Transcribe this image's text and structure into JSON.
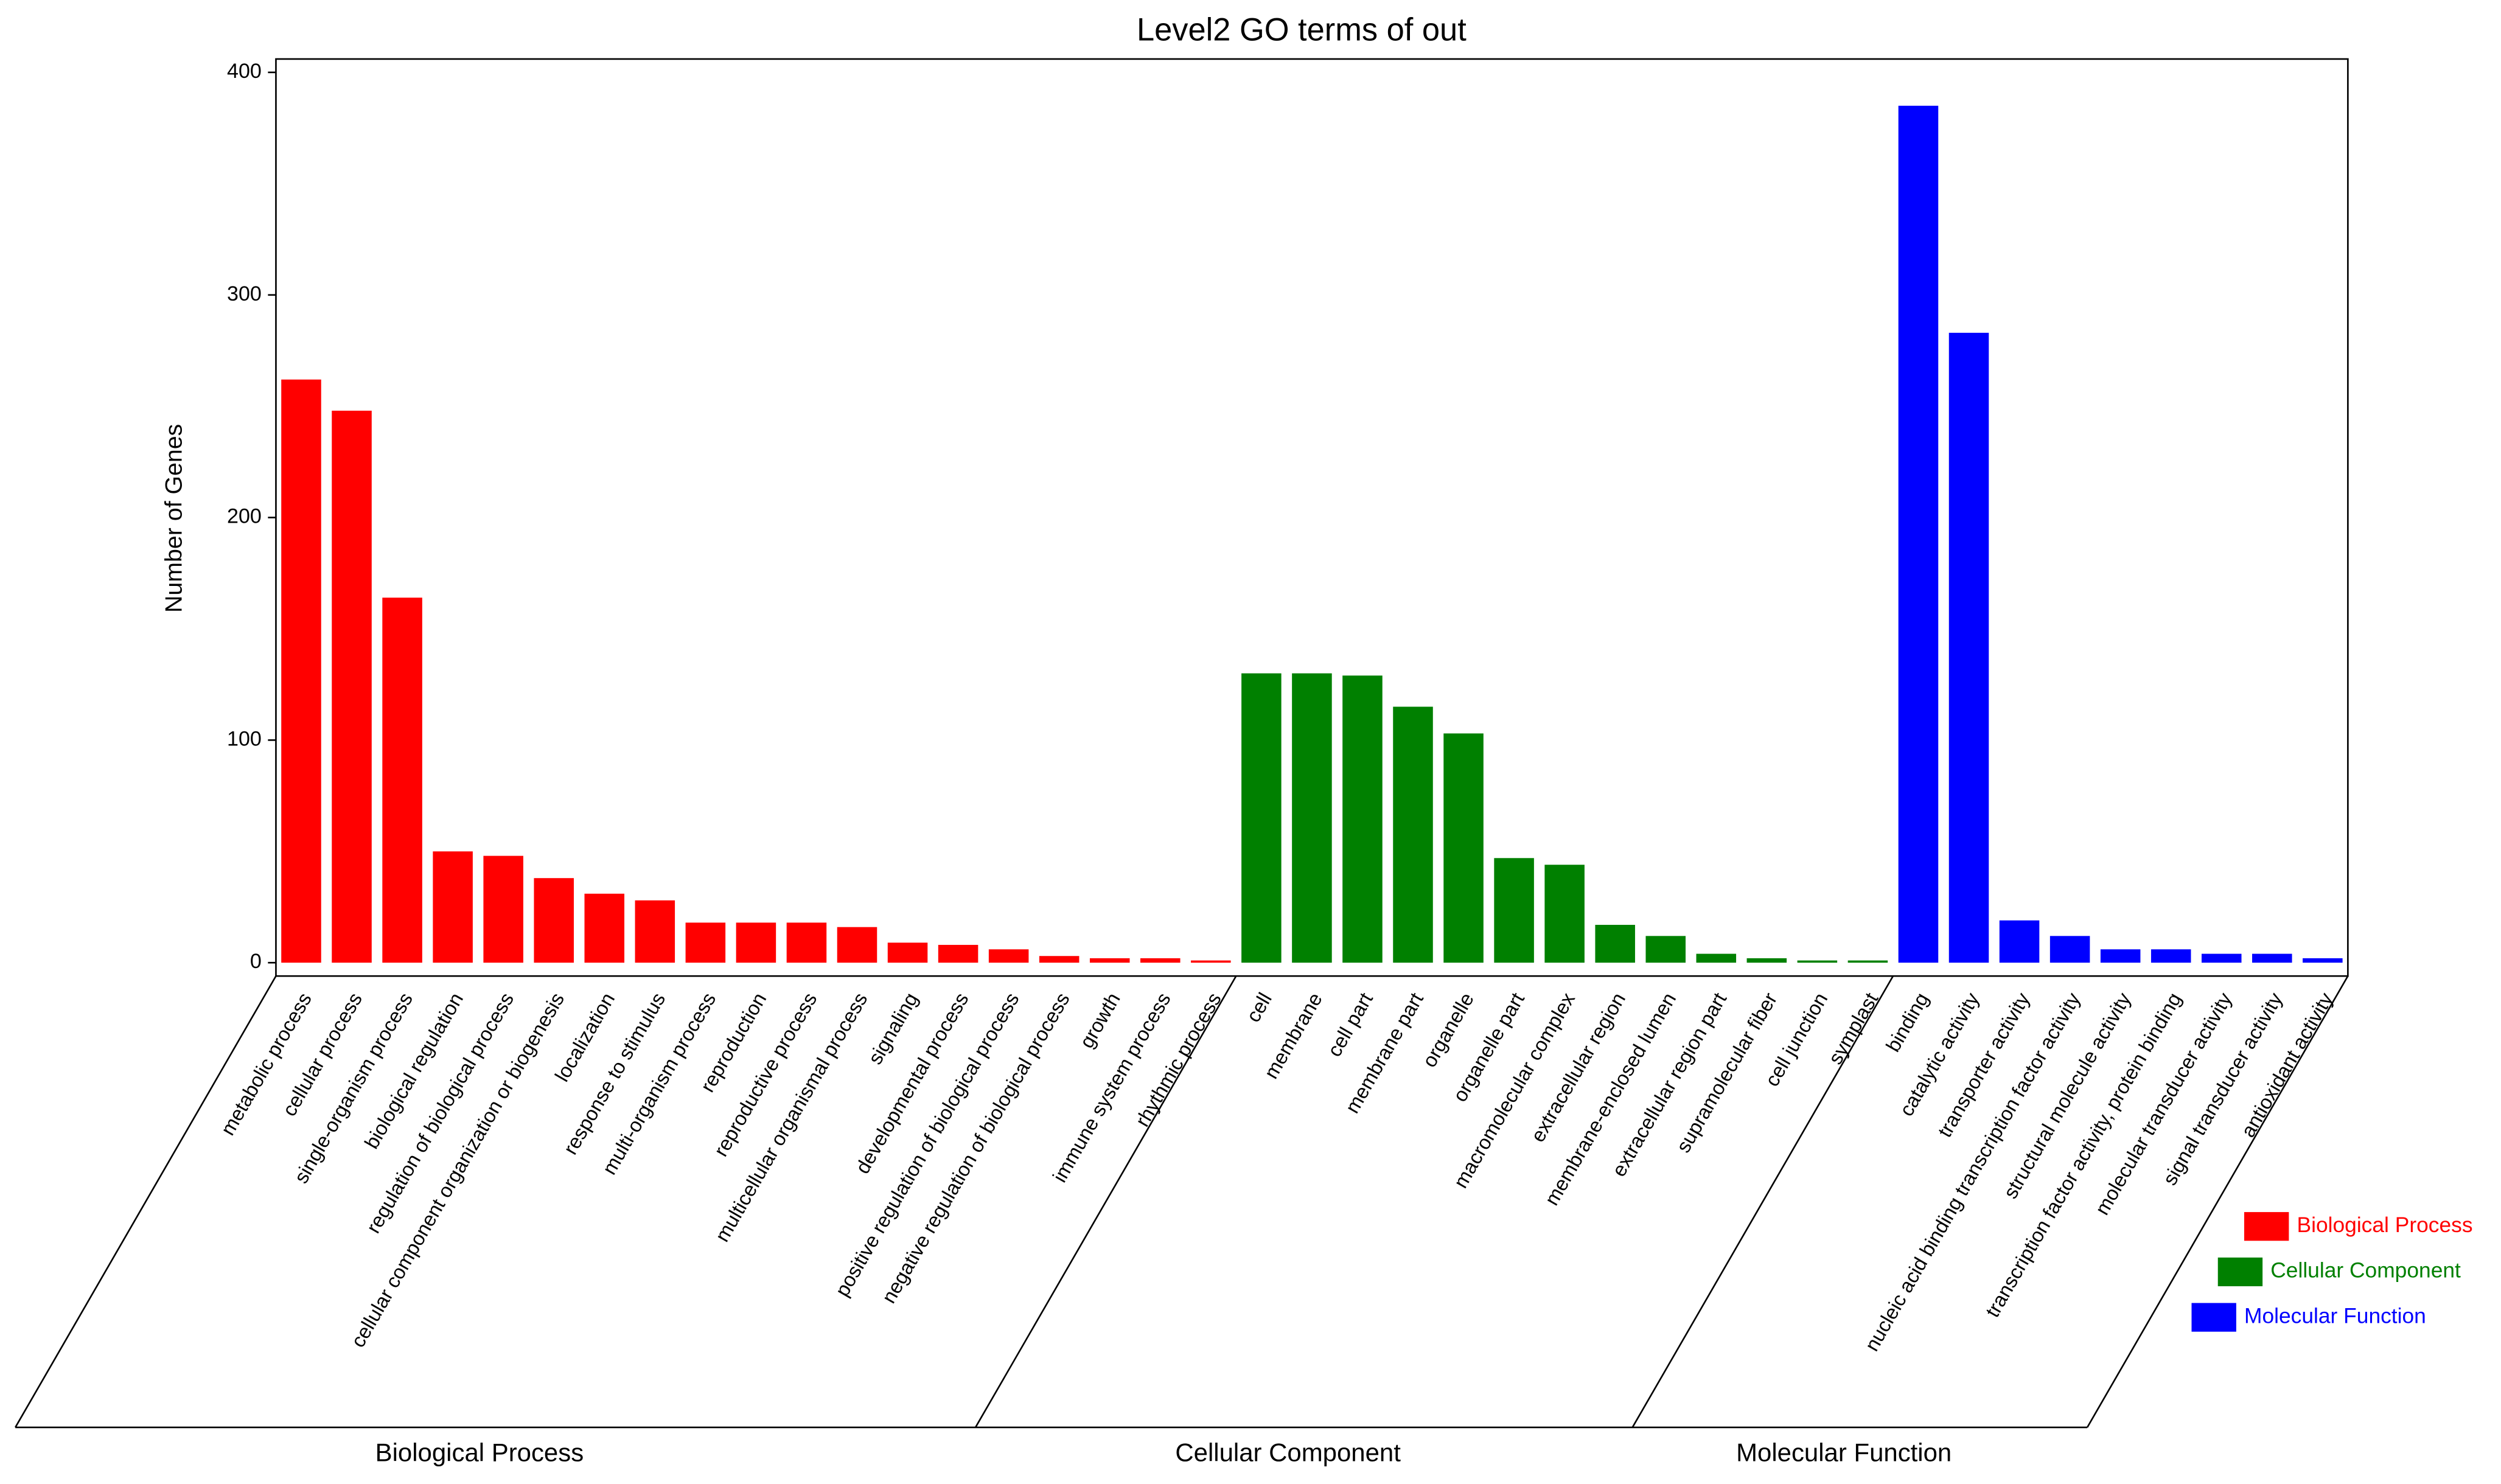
{
  "chart_data": {
    "type": "bar",
    "title": "Level2 GO terms of out",
    "ylabel": "Number of Genes",
    "categories": [
      "metabolic process",
      "cellular process",
      "single-organism process",
      "biological regulation",
      "regulation of biological process",
      "cellular component organization or biogenesis",
      "localization",
      "response to stimulus",
      "multi-organism process",
      "reproduction",
      "reproductive process",
      "multicellular organismal process",
      "signaling",
      "developmental process",
      "positive regulation of biological process",
      "negative regulation of biological process",
      "growth",
      "immune system process",
      "rhythmic process",
      "cell",
      "membrane",
      "cell part",
      "membrane part",
      "organelle",
      "organelle part",
      "macromolecular complex",
      "extracellular region",
      "membrane-enclosed lumen",
      "extracellular region part",
      "supramolecular fiber",
      "cell junction",
      "symplast",
      "binding",
      "catalytic activity",
      "transporter activity",
      "nucleic acid binding transcription factor activity",
      "structural molecule activity",
      "transcription factor activity, protein binding",
      "molecular transducer activity",
      "signal transducer activity",
      "antioxidant activity"
    ],
    "series": [
      {
        "name": "Biological Process",
        "color": "#ff0000",
        "values": [
          262,
          248,
          164,
          50,
          48,
          38,
          31,
          28,
          18,
          18,
          18,
          16,
          9,
          8,
          6,
          3,
          2,
          2,
          1,
          null,
          null,
          null,
          null,
          null,
          null,
          null,
          null,
          null,
          null,
          null,
          null,
          null,
          null,
          null,
          null,
          null,
          null,
          null,
          null,
          null,
          null
        ]
      },
      {
        "name": "Cellular Component",
        "color": "#008000",
        "values": [
          null,
          null,
          null,
          null,
          null,
          null,
          null,
          null,
          null,
          null,
          null,
          null,
          null,
          null,
          null,
          null,
          null,
          null,
          null,
          130,
          130,
          129,
          115,
          103,
          47,
          44,
          17,
          12,
          4,
          2,
          1,
          1,
          null,
          null,
          null,
          null,
          null,
          null,
          null,
          null,
          null
        ]
      },
      {
        "name": "Molecular Function",
        "color": "#0000ff",
        "values": [
          null,
          null,
          null,
          null,
          null,
          null,
          null,
          null,
          null,
          null,
          null,
          null,
          null,
          null,
          null,
          null,
          null,
          null,
          null,
          null,
          null,
          null,
          null,
          null,
          null,
          null,
          null,
          null,
          null,
          null,
          null,
          null,
          385,
          283,
          19,
          12,
          6,
          6,
          4,
          4,
          2
        ]
      }
    ],
    "ylim": [
      -6,
      406
    ],
    "yticks": [
      0,
      100,
      200,
      300,
      400
    ],
    "legend": "lower right"
  }
}
